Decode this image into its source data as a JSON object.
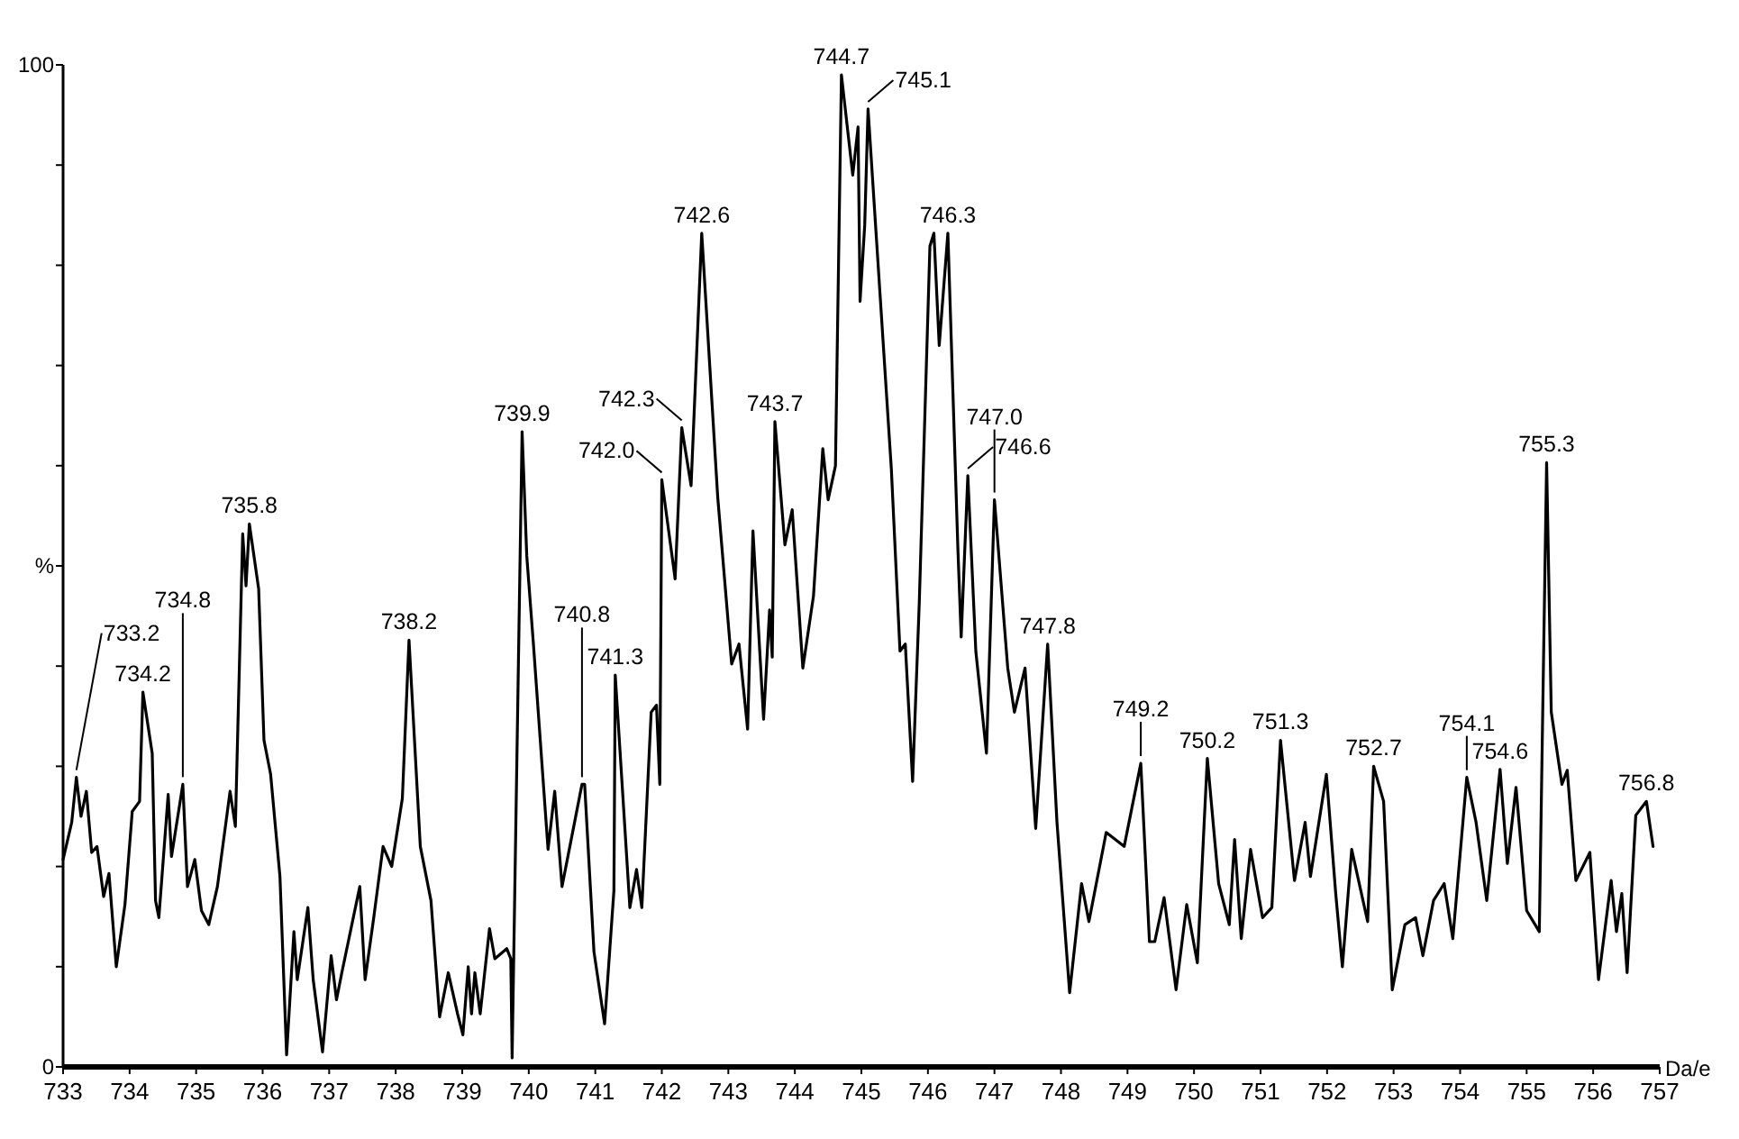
{
  "chart_data": {
    "type": "line",
    "xlabel": "Da/e",
    "ylabel": "%",
    "xlim": [
      733,
      757
    ],
    "xticks": [
      733,
      734,
      735,
      736,
      737,
      738,
      739,
      740,
      741,
      742,
      743,
      744,
      745,
      746,
      747,
      748,
      749,
      750,
      751,
      752,
      753,
      754,
      755,
      756,
      757
    ],
    "ylim": [
      0,
      100
    ],
    "yticks": [
      0,
      {
        "value": 10,
        "label": null
      },
      {
        "value": 20,
        "label": null
      },
      {
        "value": 30,
        "label": null
      },
      {
        "value": 40,
        "label": null
      },
      {
        "value": 50,
        "label": null
      },
      {
        "value": 60,
        "label": null
      },
      {
        "value": 70,
        "label": null
      },
      {
        "value": 80,
        "label": null
      },
      {
        "value": 90,
        "label": null
      },
      100
    ],
    "grid": false,
    "marker": "none",
    "line_style": "solid",
    "series": [
      {
        "color": "#000000",
        "x": [
          733.0,
          733.13,
          733.2,
          733.27,
          733.35,
          733.43,
          733.51,
          733.61,
          733.69,
          733.8,
          733.93,
          734.04,
          734.15,
          734.2,
          734.34,
          734.39,
          734.44,
          734.58,
          734.63,
          734.8,
          734.87,
          734.98,
          735.08,
          735.19,
          735.32,
          735.51,
          735.59,
          735.7,
          735.75,
          735.8,
          735.94,
          736.02,
          736.12,
          736.26,
          736.36,
          736.47,
          736.52,
          736.68,
          736.76,
          736.9,
          737.03,
          737.11,
          737.19,
          737.46,
          737.54,
          737.67,
          737.81,
          737.94,
          738.1,
          738.2,
          738.37,
          738.53,
          738.66,
          738.79,
          738.93,
          739.01,
          739.09,
          739.14,
          739.19,
          739.27,
          739.41,
          739.49,
          739.67,
          739.73,
          739.75,
          739.9,
          739.97,
          740.07,
          740.29,
          740.39,
          740.5,
          740.8,
          740.84,
          740.98,
          741.14,
          741.28,
          741.3,
          741.52,
          741.62,
          741.7,
          741.84,
          741.92,
          741.97,
          742.0,
          742.2,
          742.3,
          742.44,
          742.6,
          742.84,
          743.05,
          743.16,
          743.29,
          743.37,
          743.53,
          743.62,
          743.66,
          743.7,
          743.85,
          743.96,
          744.12,
          744.28,
          744.42,
          744.5,
          744.61,
          744.7,
          744.87,
          744.95,
          744.98,
          745.05,
          745.1,
          745.45,
          745.58,
          745.66,
          745.77,
          745.87,
          746.03,
          746.09,
          746.17,
          746.3,
          746.45,
          746.5,
          746.6,
          746.72,
          746.88,
          747.0,
          747.2,
          747.3,
          747.46,
          747.62,
          747.8,
          747.94,
          748.13,
          748.31,
          748.42,
          748.68,
          748.95,
          749.2,
          749.33,
          749.41,
          749.55,
          749.73,
          749.89,
          750.05,
          750.2,
          750.37,
          750.53,
          750.61,
          750.71,
          750.85,
          751.03,
          751.17,
          751.3,
          751.51,
          751.67,
          751.75,
          751.99,
          752.13,
          752.23,
          752.37,
          752.61,
          752.7,
          752.85,
          752.98,
          753.17,
          753.33,
          753.44,
          753.6,
          753.76,
          753.89,
          754.1,
          754.24,
          754.4,
          754.6,
          754.71,
          754.84,
          755.0,
          755.19,
          755.3,
          755.37,
          755.53,
          755.61,
          755.74,
          755.95,
          756.08,
          756.27,
          756.35,
          756.43,
          756.51,
          756.64,
          756.8,
          756.9
        ],
        "values": [
          20.7,
          24.4,
          28.9,
          25,
          27.5,
          21.4,
          22,
          17,
          19.3,
          10,
          16.2,
          25.5,
          26.5,
          37.4,
          31.3,
          16.6,
          14.9,
          27.2,
          21,
          28.2,
          18,
          20.7,
          15.6,
          14.2,
          18,
          27.5,
          24,
          53.2,
          48,
          54.2,
          47.7,
          32.6,
          29.2,
          19,
          1.2,
          13.5,
          8.7,
          15.9,
          8.7,
          1.5,
          11.1,
          6.7,
          9.4,
          18,
          8.7,
          14.9,
          22,
          20,
          26.8,
          42.6,
          22,
          16.6,
          5,
          9.4,
          5.3,
          3.2,
          10,
          5.3,
          9.4,
          5.3,
          13.8,
          10.8,
          11.8,
          10.8,
          0.9,
          63.4,
          51,
          42.2,
          21.7,
          27.5,
          18,
          28.2,
          28.2,
          11.5,
          4.3,
          17.6,
          39.1,
          15.9,
          19.7,
          15.9,
          35.4,
          36.1,
          28.2,
          58.6,
          48.7,
          63.8,
          58,
          83.2,
          56.9,
          40.2,
          42.2,
          33.7,
          53.5,
          34.7,
          45.6,
          40.9,
          64.4,
          52.1,
          55.6,
          39.8,
          47,
          61.7,
          56.6,
          60,
          99,
          89,
          93.8,
          76.4,
          84,
          95.6,
          59.7,
          41.5,
          42.2,
          28.5,
          46.3,
          81.9,
          83.2,
          72,
          83.2,
          51.8,
          42.9,
          59,
          41.5,
          31.3,
          56.6,
          39.8,
          35.4,
          39.8,
          23.8,
          42.2,
          24.4,
          7.4,
          18.3,
          14.5,
          23.4,
          22,
          30.3,
          12.5,
          12.5,
          16.9,
          7.7,
          16.2,
          10.4,
          30.8,
          18.3,
          14.2,
          22.7,
          12.8,
          21.7,
          14.9,
          15.9,
          32.6,
          18.6,
          24.4,
          19,
          29.2,
          17.3,
          10,
          21.7,
          14.5,
          30,
          26.5,
          7.7,
          14.2,
          14.9,
          11.1,
          16.6,
          18.3,
          12.8,
          28.9,
          24.4,
          16.6,
          29.7,
          20.3,
          27.9,
          15.6,
          13.5,
          60.3,
          35.4,
          28.2,
          29.6,
          18.6,
          21.4,
          8.7,
          18.6,
          13.5,
          17.3,
          9.4,
          25.1,
          26.5,
          22
        ]
      }
    ],
    "annotations": [
      {
        "text": "733.2",
        "x": 733.2,
        "y": 28.9
      },
      {
        "text": "734.2",
        "x": 734.2,
        "y": 37.4
      },
      {
        "text": "734.8",
        "x": 734.8,
        "y": 28.2
      },
      {
        "text": "735.8",
        "x": 735.8,
        "y": 54.2
      },
      {
        "text": "738.2",
        "x": 738.2,
        "y": 42.6
      },
      {
        "text": "739.9",
        "x": 739.9,
        "y": 63.4
      },
      {
        "text": "740.8",
        "x": 740.8,
        "y": 28.2
      },
      {
        "text": "741.3",
        "x": 741.3,
        "y": 39.1
      },
      {
        "text": "742.0",
        "x": 742.0,
        "y": 58.6
      },
      {
        "text": "742.3",
        "x": 742.3,
        "y": 63.8
      },
      {
        "text": "742.6",
        "x": 742.6,
        "y": 83.2
      },
      {
        "text": "743.7",
        "x": 743.7,
        "y": 64.4
      },
      {
        "text": "744.7",
        "x": 744.7,
        "y": 99
      },
      {
        "text": "745.1",
        "x": 745.1,
        "y": 95.6
      },
      {
        "text": "746.3",
        "x": 746.3,
        "y": 83.2
      },
      {
        "text": "746.6",
        "x": 746.6,
        "y": 59
      },
      {
        "text": "747.0",
        "x": 747.0,
        "y": 56.6
      },
      {
        "text": "747.8",
        "x": 747.8,
        "y": 42.2
      },
      {
        "text": "749.2",
        "x": 749.2,
        "y": 30.3
      },
      {
        "text": "750.2",
        "x": 750.2,
        "y": 30.8
      },
      {
        "text": "751.3",
        "x": 751.3,
        "y": 32.6
      },
      {
        "text": "752.7",
        "x": 752.7,
        "y": 30
      },
      {
        "text": "754.1",
        "x": 754.1,
        "y": 28.9
      },
      {
        "text": "754.6",
        "x": 754.6,
        "y": 29.7
      },
      {
        "text": "755.3",
        "x": 755.3,
        "y": 60.3
      },
      {
        "text": "756.8",
        "x": 756.8,
        "y": 26.5
      }
    ]
  }
}
